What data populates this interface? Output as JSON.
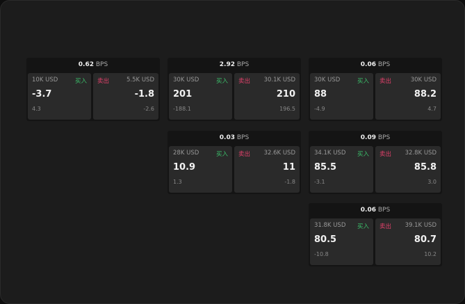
{
  "unit": "BPS",
  "buy_label": "买入",
  "sell_label": "卖出",
  "colors": {
    "buy": "#3bbf6a",
    "sell": "#e0406a"
  },
  "panels": [
    {
      "bps": "0.62",
      "buy": {
        "size": "10K USD",
        "price": "-3.7",
        "change": "4.3"
      },
      "sell": {
        "size": "5.5K USD",
        "price": "-1.8",
        "change": "-2.6"
      }
    },
    {
      "bps": "2.92",
      "buy": {
        "size": "30K USD",
        "price": "201",
        "change": "-188.1"
      },
      "sell": {
        "size": "30.1K USD",
        "price": "210",
        "change": "196.5"
      }
    },
    {
      "bps": "0.06",
      "buy": {
        "size": "30K USD",
        "price": "88",
        "change": "-4.9"
      },
      "sell": {
        "size": "30K USD",
        "price": "88.2",
        "change": "4.7"
      }
    },
    {
      "bps": "0.03",
      "buy": {
        "size": "28K USD",
        "price": "10.9",
        "change": "1.3"
      },
      "sell": {
        "size": "32.6K USD",
        "price": "11",
        "change": "-1.8"
      }
    },
    {
      "bps": "0.09",
      "buy": {
        "size": "34.1K USD",
        "price": "85.5",
        "change": "-3.1"
      },
      "sell": {
        "size": "32.8K USD",
        "price": "85.8",
        "change": "3.0"
      }
    },
    {
      "bps": "0.06",
      "buy": {
        "size": "31.8K USD",
        "price": "80.5",
        "change": "-10.8"
      },
      "sell": {
        "size": "39.1K USD",
        "price": "80.7",
        "change": "10.2"
      }
    }
  ]
}
